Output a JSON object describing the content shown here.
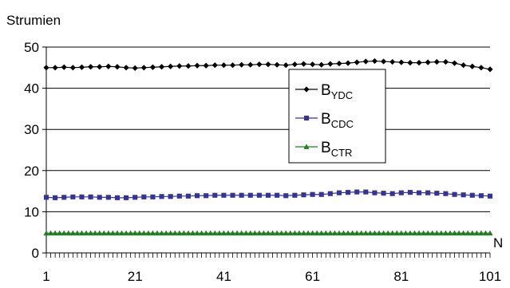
{
  "chart_data": {
    "type": "line",
    "ylabel": "Strumien",
    "xlabel": "N",
    "xlim": [
      1,
      101
    ],
    "ylim": [
      0,
      50
    ],
    "yticks": [
      0,
      10,
      20,
      30,
      40,
      50
    ],
    "xtick_labels": [
      "1",
      "21",
      "41",
      "61",
      "81",
      "101"
    ],
    "grid": "horizontal",
    "legend_position": "right-center",
    "series": [
      {
        "name": "B_YDC",
        "label_main": "B",
        "label_sub": "YDC",
        "color": "#000000",
        "marker": "diamond",
        "x_start": 1,
        "x_step": 2,
        "values": [
          45.0,
          45.0,
          45.1,
          45.0,
          45.1,
          45.2,
          45.2,
          45.3,
          45.2,
          45.0,
          44.9,
          45.0,
          45.1,
          45.2,
          45.3,
          45.4,
          45.4,
          45.5,
          45.5,
          45.6,
          45.6,
          45.6,
          45.7,
          45.7,
          45.8,
          45.8,
          45.7,
          45.6,
          45.8,
          45.9,
          45.8,
          45.7,
          45.9,
          46.0,
          46.1,
          46.3,
          46.5,
          46.6,
          46.5,
          46.4,
          46.3,
          46.2,
          46.2,
          46.3,
          46.4,
          46.4,
          46.1,
          45.6,
          45.3,
          45.0,
          44.6
        ]
      },
      {
        "name": "B_CDC",
        "label_main": "B",
        "label_sub": "CDC",
        "color": "#33339A",
        "marker": "square",
        "x_start": 1,
        "x_step": 2,
        "values": [
          13.5,
          13.4,
          13.5,
          13.6,
          13.6,
          13.6,
          13.5,
          13.5,
          13.4,
          13.4,
          13.5,
          13.6,
          13.6,
          13.7,
          13.7,
          13.8,
          13.8,
          13.9,
          13.9,
          14.0,
          14.0,
          14.0,
          14.0,
          14.0,
          14.0,
          14.0,
          14.0,
          13.9,
          14.0,
          14.1,
          14.2,
          14.2,
          14.4,
          14.6,
          14.7,
          14.8,
          14.8,
          14.6,
          14.5,
          14.4,
          14.6,
          14.7,
          14.6,
          14.6,
          14.5,
          14.4,
          14.2,
          14.1,
          14.0,
          13.9,
          13.8
        ]
      },
      {
        "name": "B_CTR",
        "label_main": "B",
        "label_sub": "CTR",
        "color": "#1E7F1E",
        "marker": "triangle",
        "x_start": 1,
        "x_step": 1,
        "constant": 4.8,
        "count": 101
      }
    ]
  }
}
